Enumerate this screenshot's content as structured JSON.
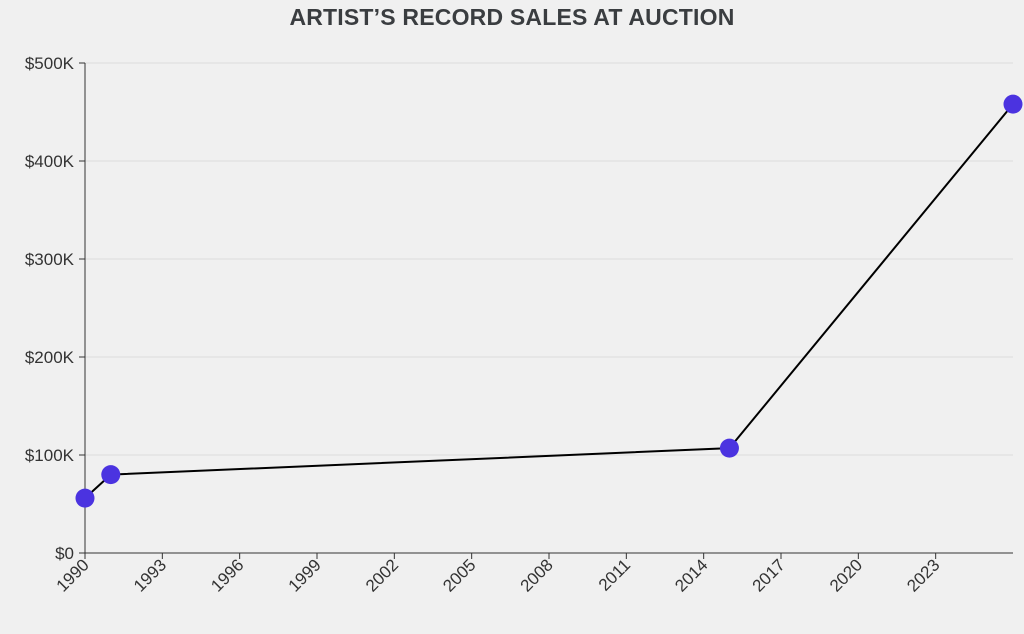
{
  "chart_data": {
    "type": "line",
    "title": "ARTIST’S RECORD SALES AT AUCTION",
    "xlabel": "",
    "ylabel": "",
    "x": [
      1990,
      1991,
      2015,
      2026
    ],
    "series": [
      {
        "values": [
          56000,
          80000,
          107000,
          458000
        ],
        "color": "#4b33e0"
      }
    ],
    "xlim": [
      1990,
      2026
    ],
    "ylim": [
      0,
      500000
    ],
    "x_ticks": [
      1990,
      1993,
      1996,
      1999,
      2002,
      2005,
      2008,
      2011,
      2014,
      2017,
      2020,
      2023
    ],
    "y_ticks": [
      0,
      100000,
      200000,
      300000,
      400000,
      500000
    ],
    "y_tick_labels": [
      "$0",
      "$100K",
      "$200K",
      "$300K",
      "$400K",
      "$500K"
    ],
    "grid": true,
    "line_color": "#000000"
  }
}
